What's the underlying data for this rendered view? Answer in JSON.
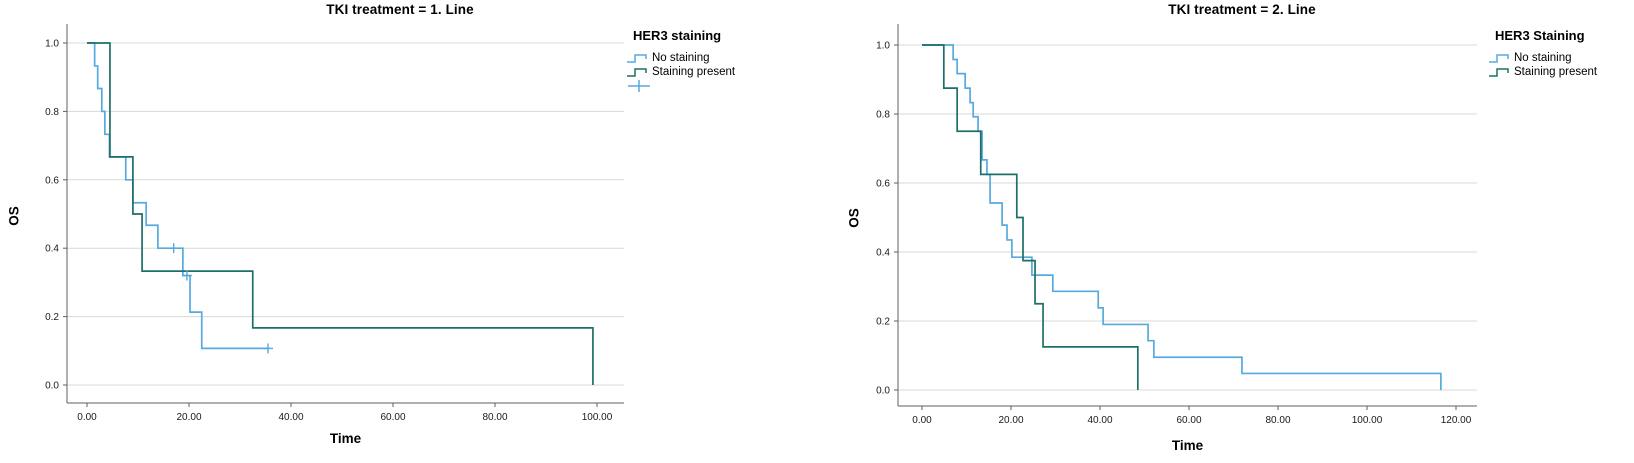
{
  "colors": {
    "no_staining": "#56aadf",
    "staining_present": "#1e6f68",
    "grid": "#d8d8d8",
    "axis": "#5f5f5f",
    "background": "#ffffff"
  },
  "chart_data": [
    {
      "type": "line",
      "variant": "kaplan_meier_step",
      "title": "TKI treatment = 1. Line",
      "xlabel": "Time",
      "ylabel": "OS",
      "xticks": [
        0,
        20,
        40,
        60,
        80,
        100
      ],
      "xtick_labels": [
        "0.00",
        "20.00",
        "40.00",
        "60.00",
        "80.00",
        "100.00"
      ],
      "yticks": [
        0,
        0.2,
        0.4,
        0.6,
        0.8,
        1.0
      ],
      "ytick_labels": [
        "0.0",
        "0.2",
        "0.4",
        "0.6",
        "0.8",
        "1.0"
      ],
      "xlim": [
        0,
        105
      ],
      "ylim": [
        0,
        1.05
      ],
      "grid": "horizontal-only",
      "legend": {
        "title": "HER3 staining",
        "position": "right",
        "entries": [
          {
            "label": "No staining",
            "color": "#56aadf",
            "glyph": "step"
          },
          {
            "label": "Staining present",
            "color": "#1e6f68",
            "glyph": "step"
          },
          {
            "label": "",
            "color": "#56aadf",
            "glyph": "plus"
          }
        ]
      },
      "series": [
        {
          "name": "No staining",
          "color": "#56aadf",
          "points": [
            [
              0,
              1
            ],
            [
              1.5,
              0.933
            ],
            [
              2.1,
              0.867
            ],
            [
              2.9,
              0.8
            ],
            [
              3.5,
              0.733
            ],
            [
              4.4,
              0.667
            ],
            [
              7.6,
              0.6
            ],
            [
              9,
              0.533
            ],
            [
              11.6,
              0.467
            ],
            [
              13.9,
              0.4
            ],
            [
              18.8,
              0.32
            ],
            [
              20.2,
              0.213
            ],
            [
              22.5,
              0.107
            ]
          ],
          "tail": 35.5,
          "censors": [
            [
              17,
              0.4
            ],
            [
              19.6,
              0.32
            ],
            [
              35.5,
              0.107
            ]
          ]
        },
        {
          "name": "Staining present",
          "color": "#1e6f68",
          "points": [
            [
              0,
              1
            ],
            [
              4.5,
              0.667
            ],
            [
              9,
              0.5
            ],
            [
              10.8,
              0.333
            ],
            [
              32.5,
              0.167
            ],
            [
              99.2,
              0
            ]
          ],
          "tail": null,
          "censors": []
        }
      ]
    },
    {
      "type": "line",
      "variant": "kaplan_meier_step",
      "title": "TKI treatment = 2. Line",
      "xlabel": "Time",
      "ylabel": "OS",
      "xticks": [
        0,
        20,
        40,
        60,
        80,
        100,
        120
      ],
      "xtick_labels": [
        "0.00",
        "20.00",
        "40.00",
        "60.00",
        "80.00",
        "100.00",
        "120.00"
      ],
      "yticks": [
        0,
        0.2,
        0.4,
        0.6,
        0.8,
        1.0
      ],
      "ytick_labels": [
        "0.0",
        "0.2",
        "0.4",
        "0.6",
        "0.8",
        "1.0"
      ],
      "xlim": [
        0,
        125
      ],
      "ylim": [
        0,
        1.05
      ],
      "grid": "horizontal-only",
      "legend": {
        "title": "HER3 Staining",
        "position": "right",
        "entries": [
          {
            "label": "No staining",
            "color": "#56aadf",
            "glyph": "step"
          },
          {
            "label": "Staining present",
            "color": "#1e6f68",
            "glyph": "step"
          }
        ]
      },
      "series": [
        {
          "name": "No staining",
          "color": "#56aadf",
          "points": [
            [
              0,
              1
            ],
            [
              7,
              0.958
            ],
            [
              7.9,
              0.917
            ],
            [
              9.7,
              0.875
            ],
            [
              10.8,
              0.833
            ],
            [
              11.5,
              0.792
            ],
            [
              12.6,
              0.75
            ],
            [
              13.5,
              0.667
            ],
            [
              14.6,
              0.625
            ],
            [
              15.3,
              0.542
            ],
            [
              18,
              0.478
            ],
            [
              19.1,
              0.435
            ],
            [
              20.2,
              0.385
            ],
            [
              24.7,
              0.333
            ],
            [
              29.4,
              0.286
            ],
            [
              39.6,
              0.238
            ],
            [
              40.7,
              0.19
            ],
            [
              50.8,
              0.143
            ],
            [
              52.1,
              0.095
            ],
            [
              71.9,
              0.048
            ],
            [
              116.6,
              0
            ]
          ],
          "tail": null,
          "censors": []
        },
        {
          "name": "Staining present",
          "color": "#1e6f68",
          "points": [
            [
              0,
              1
            ],
            [
              4.9,
              0.875
            ],
            [
              7.9,
              0.75
            ],
            [
              13.2,
              0.625
            ],
            [
              21.3,
              0.5
            ],
            [
              22.7,
              0.375
            ],
            [
              25.4,
              0.25
            ],
            [
              27.2,
              0.125
            ],
            [
              48.5,
              0
            ]
          ],
          "tail": null,
          "censors": []
        }
      ]
    }
  ]
}
